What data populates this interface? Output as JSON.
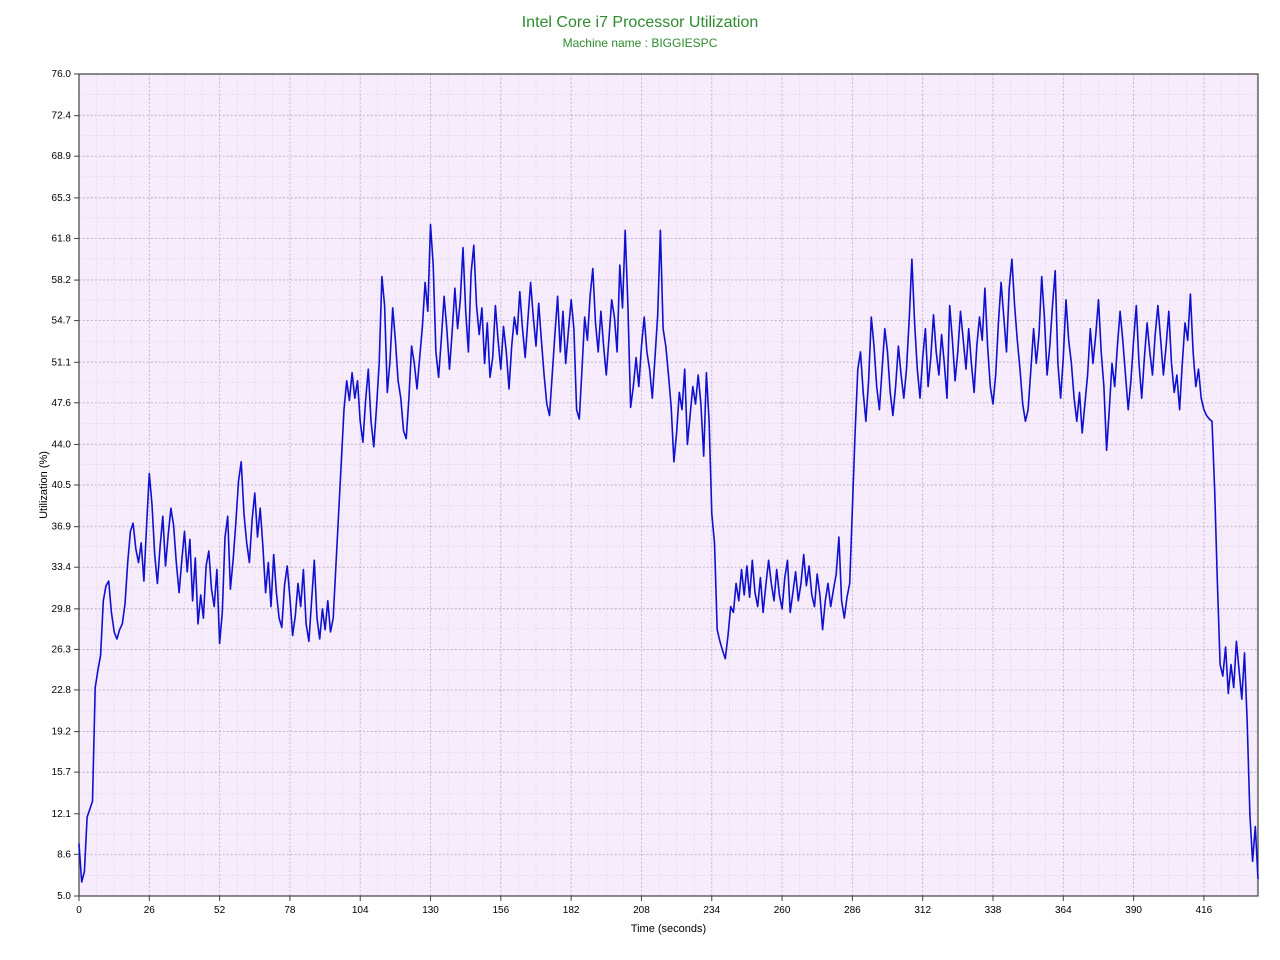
{
  "chart": {
    "type": "line",
    "title": "Intel Core i7 Processor Utilization",
    "subtitle": "Machine name : BIGGIESPC",
    "title_color": "#2e8b2e",
    "subtitle_color": "#2e8b2e",
    "title_fontsize": 16,
    "subtitle_fontsize": 12,
    "xlabel": "Time (seconds)",
    "ylabel": "Utilization (%)",
    "label_fontsize": 11,
    "tick_fontsize": 10,
    "xlim": [
      0,
      436
    ],
    "ylim": [
      5.0,
      76.0
    ],
    "xticks": [
      0,
      26,
      52,
      78,
      104,
      130,
      156,
      182,
      208,
      234,
      260,
      286,
      312,
      338,
      364,
      390,
      416
    ],
    "yticks": [
      5.0,
      8.6,
      12.1,
      15.7,
      19.2,
      22.8,
      26.3,
      29.8,
      33.4,
      36.9,
      40.5,
      44.0,
      47.6,
      51.1,
      54.7,
      58.2,
      61.8,
      65.3,
      68.9,
      72.4,
      76.0
    ],
    "plot_bg": "#f6ecfb",
    "grid_major_color": "#b8a8c8",
    "grid_minor_color": "#d8c8e0",
    "border_color": "#404040",
    "line_color": "#1010d0",
    "line_width": 1.6,
    "x_minor_step": 6.5,
    "y_minor_step": 1.775,
    "data": [
      [
        0,
        9.5
      ],
      [
        1,
        6.2
      ],
      [
        2,
        7.1
      ],
      [
        3,
        11.8
      ],
      [
        4,
        12.5
      ],
      [
        5,
        13.2
      ],
      [
        6,
        23.0
      ],
      [
        7,
        24.5
      ],
      [
        8,
        25.8
      ],
      [
        9,
        30.5
      ],
      [
        10,
        31.8
      ],
      [
        11,
        32.2
      ],
      [
        12,
        29.5
      ],
      [
        13,
        27.8
      ],
      [
        14,
        27.2
      ],
      [
        15,
        28.0
      ],
      [
        16,
        28.5
      ],
      [
        17,
        30.2
      ],
      [
        18,
        33.8
      ],
      [
        19,
        36.5
      ],
      [
        20,
        37.2
      ],
      [
        21,
        35.0
      ],
      [
        22,
        33.8
      ],
      [
        23,
        35.5
      ],
      [
        24,
        32.2
      ],
      [
        25,
        37.0
      ],
      [
        26,
        41.5
      ],
      [
        27,
        38.8
      ],
      [
        28,
        34.5
      ],
      [
        29,
        32.0
      ],
      [
        30,
        35.2
      ],
      [
        31,
        37.8
      ],
      [
        32,
        33.5
      ],
      [
        33,
        36.2
      ],
      [
        34,
        38.5
      ],
      [
        35,
        37.0
      ],
      [
        36,
        33.8
      ],
      [
        37,
        31.2
      ],
      [
        38,
        34.0
      ],
      [
        39,
        36.5
      ],
      [
        40,
        33.0
      ],
      [
        41,
        35.8
      ],
      [
        42,
        30.5
      ],
      [
        43,
        34.2
      ],
      [
        44,
        28.5
      ],
      [
        45,
        31.0
      ],
      [
        46,
        29.0
      ],
      [
        47,
        33.5
      ],
      [
        48,
        34.8
      ],
      [
        49,
        31.5
      ],
      [
        50,
        30.0
      ],
      [
        51,
        33.2
      ],
      [
        52,
        26.8
      ],
      [
        53,
        29.5
      ],
      [
        54,
        36.0
      ],
      [
        55,
        37.8
      ],
      [
        56,
        31.5
      ],
      [
        57,
        34.0
      ],
      [
        58,
        37.2
      ],
      [
        59,
        40.8
      ],
      [
        60,
        42.5
      ],
      [
        61,
        38.0
      ],
      [
        62,
        35.5
      ],
      [
        63,
        33.8
      ],
      [
        64,
        37.5
      ],
      [
        65,
        39.8
      ],
      [
        66,
        36.0
      ],
      [
        67,
        38.5
      ],
      [
        68,
        35.2
      ],
      [
        69,
        31.2
      ],
      [
        70,
        33.8
      ],
      [
        71,
        30.0
      ],
      [
        72,
        34.5
      ],
      [
        73,
        31.2
      ],
      [
        74,
        29.0
      ],
      [
        75,
        28.2
      ],
      [
        76,
        31.8
      ],
      [
        77,
        33.5
      ],
      [
        78,
        30.8
      ],
      [
        79,
        27.5
      ],
      [
        80,
        29.2
      ],
      [
        81,
        32.0
      ],
      [
        82,
        30.0
      ],
      [
        83,
        33.2
      ],
      [
        84,
        28.5
      ],
      [
        85,
        27.0
      ],
      [
        86,
        30.5
      ],
      [
        87,
        34.0
      ],
      [
        88,
        29.0
      ],
      [
        89,
        27.2
      ],
      [
        90,
        29.8
      ],
      [
        91,
        28.0
      ],
      [
        92,
        30.5
      ],
      [
        93,
        27.8
      ],
      [
        94,
        29.0
      ],
      [
        95,
        33.5
      ],
      [
        96,
        38.0
      ],
      [
        97,
        42.5
      ],
      [
        98,
        47.0
      ],
      [
        99,
        49.5
      ],
      [
        100,
        47.8
      ],
      [
        101,
        50.2
      ],
      [
        102,
        48.0
      ],
      [
        103,
        49.5
      ],
      [
        104,
        46.0
      ],
      [
        105,
        44.2
      ],
      [
        106,
        47.8
      ],
      [
        107,
        50.5
      ],
      [
        108,
        46.0
      ],
      [
        109,
        43.8
      ],
      [
        110,
        47.2
      ],
      [
        111,
        51.0
      ],
      [
        112,
        58.5
      ],
      [
        113,
        56.0
      ],
      [
        114,
        48.5
      ],
      [
        115,
        51.2
      ],
      [
        116,
        55.8
      ],
      [
        117,
        53.0
      ],
      [
        118,
        49.5
      ],
      [
        119,
        48.0
      ],
      [
        120,
        45.2
      ],
      [
        121,
        44.5
      ],
      [
        122,
        48.0
      ],
      [
        123,
        52.5
      ],
      [
        124,
        51.0
      ],
      [
        125,
        48.8
      ],
      [
        126,
        51.5
      ],
      [
        127,
        54.2
      ],
      [
        128,
        58.0
      ],
      [
        129,
        55.5
      ],
      [
        130,
        63.0
      ],
      [
        131,
        59.5
      ],
      [
        132,
        52.0
      ],
      [
        133,
        49.8
      ],
      [
        134,
        53.2
      ],
      [
        135,
        56.8
      ],
      [
        136,
        54.0
      ],
      [
        137,
        50.5
      ],
      [
        138,
        53.8
      ],
      [
        139,
        57.5
      ],
      [
        140,
        54.0
      ],
      [
        141,
        56.5
      ],
      [
        142,
        61.0
      ],
      [
        143,
        55.5
      ],
      [
        144,
        52.0
      ],
      [
        145,
        58.8
      ],
      [
        146,
        61.2
      ],
      [
        147,
        56.0
      ],
      [
        148,
        53.5
      ],
      [
        149,
        55.8
      ],
      [
        150,
        51.0
      ],
      [
        151,
        54.5
      ],
      [
        152,
        49.8
      ],
      [
        153,
        51.5
      ],
      [
        154,
        56.0
      ],
      [
        155,
        53.0
      ],
      [
        156,
        50.5
      ],
      [
        157,
        54.2
      ],
      [
        158,
        52.0
      ],
      [
        159,
        48.8
      ],
      [
        160,
        52.5
      ],
      [
        161,
        55.0
      ],
      [
        162,
        53.5
      ],
      [
        163,
        57.2
      ],
      [
        164,
        54.0
      ],
      [
        165,
        51.5
      ],
      [
        166,
        54.8
      ],
      [
        167,
        58.0
      ],
      [
        168,
        55.0
      ],
      [
        169,
        52.5
      ],
      [
        170,
        56.2
      ],
      [
        171,
        53.0
      ],
      [
        172,
        50.0
      ],
      [
        173,
        47.5
      ],
      [
        174,
        46.5
      ],
      [
        175,
        50.0
      ],
      [
        176,
        53.5
      ],
      [
        177,
        56.8
      ],
      [
        178,
        52.0
      ],
      [
        179,
        55.5
      ],
      [
        180,
        51.0
      ],
      [
        181,
        53.8
      ],
      [
        182,
        56.5
      ],
      [
        183,
        54.0
      ],
      [
        184,
        47.0
      ],
      [
        185,
        46.2
      ],
      [
        186,
        50.5
      ],
      [
        187,
        55.0
      ],
      [
        188,
        53.0
      ],
      [
        189,
        56.8
      ],
      [
        190,
        59.2
      ],
      [
        191,
        54.5
      ],
      [
        192,
        52.0
      ],
      [
        193,
        55.5
      ],
      [
        194,
        52.5
      ],
      [
        195,
        50.0
      ],
      [
        196,
        53.2
      ],
      [
        197,
        56.5
      ],
      [
        198,
        55.0
      ],
      [
        199,
        52.0
      ],
      [
        200,
        59.5
      ],
      [
        201,
        55.8
      ],
      [
        202,
        62.5
      ],
      [
        203,
        56.0
      ],
      [
        204,
        47.2
      ],
      [
        205,
        49.0
      ],
      [
        206,
        51.5
      ],
      [
        207,
        49.0
      ],
      [
        208,
        52.5
      ],
      [
        209,
        55.0
      ],
      [
        210,
        52.0
      ],
      [
        211,
        50.5
      ],
      [
        212,
        48.0
      ],
      [
        213,
        51.5
      ],
      [
        214,
        55.2
      ],
      [
        215,
        62.5
      ],
      [
        216,
        54.0
      ],
      [
        217,
        52.5
      ],
      [
        218,
        50.0
      ],
      [
        219,
        47.2
      ],
      [
        220,
        42.5
      ],
      [
        221,
        45.0
      ],
      [
        222,
        48.5
      ],
      [
        223,
        47.0
      ],
      [
        224,
        50.5
      ],
      [
        225,
        44.0
      ],
      [
        226,
        46.5
      ],
      [
        227,
        49.0
      ],
      [
        228,
        47.5
      ],
      [
        229,
        50.0
      ],
      [
        230,
        47.5
      ],
      [
        231,
        43.0
      ],
      [
        232,
        50.2
      ],
      [
        233,
        46.0
      ],
      [
        234,
        38.0
      ],
      [
        235,
        35.5
      ],
      [
        236,
        28.0
      ],
      [
        237,
        27.0
      ],
      [
        238,
        26.2
      ],
      [
        239,
        25.5
      ],
      [
        240,
        27.5
      ],
      [
        241,
        30.0
      ],
      [
        242,
        29.5
      ],
      [
        243,
        32.0
      ],
      [
        244,
        30.5
      ],
      [
        245,
        33.2
      ],
      [
        246,
        31.0
      ],
      [
        247,
        33.5
      ],
      [
        248,
        30.8
      ],
      [
        249,
        34.0
      ],
      [
        250,
        31.2
      ],
      [
        251,
        30.0
      ],
      [
        252,
        32.5
      ],
      [
        253,
        29.5
      ],
      [
        254,
        31.8
      ],
      [
        255,
        34.0
      ],
      [
        256,
        32.0
      ],
      [
        257,
        30.5
      ],
      [
        258,
        33.2
      ],
      [
        259,
        31.0
      ],
      [
        260,
        29.8
      ],
      [
        261,
        32.5
      ],
      [
        262,
        34.0
      ],
      [
        263,
        29.5
      ],
      [
        264,
        31.2
      ],
      [
        265,
        33.0
      ],
      [
        266,
        30.5
      ],
      [
        267,
        32.0
      ],
      [
        268,
        34.5
      ],
      [
        269,
        31.8
      ],
      [
        270,
        33.5
      ],
      [
        271,
        31.0
      ],
      [
        272,
        30.0
      ],
      [
        273,
        32.8
      ],
      [
        274,
        31.0
      ],
      [
        275,
        28.0
      ],
      [
        276,
        30.5
      ],
      [
        277,
        32.0
      ],
      [
        278,
        30.0
      ],
      [
        279,
        31.5
      ],
      [
        280,
        32.8
      ],
      [
        281,
        36.0
      ],
      [
        282,
        30.5
      ],
      [
        283,
        29.0
      ],
      [
        284,
        30.8
      ],
      [
        285,
        32.0
      ],
      [
        286,
        38.5
      ],
      [
        287,
        45.0
      ],
      [
        288,
        50.5
      ],
      [
        289,
        52.0
      ],
      [
        290,
        48.5
      ],
      [
        291,
        46.0
      ],
      [
        292,
        49.5
      ],
      [
        293,
        55.0
      ],
      [
        294,
        52.5
      ],
      [
        295,
        49.0
      ],
      [
        296,
        47.0
      ],
      [
        297,
        50.5
      ],
      [
        298,
        54.0
      ],
      [
        299,
        52.0
      ],
      [
        300,
        48.5
      ],
      [
        301,
        46.5
      ],
      [
        302,
        49.0
      ],
      [
        303,
        52.5
      ],
      [
        304,
        50.0
      ],
      [
        305,
        48.0
      ],
      [
        306,
        50.5
      ],
      [
        307,
        54.8
      ],
      [
        308,
        60.0
      ],
      [
        309,
        54.5
      ],
      [
        310,
        50.5
      ],
      [
        311,
        48.0
      ],
      [
        312,
        51.5
      ],
      [
        313,
        54.0
      ],
      [
        314,
        49.0
      ],
      [
        315,
        51.5
      ],
      [
        316,
        55.2
      ],
      [
        317,
        52.0
      ],
      [
        318,
        50.0
      ],
      [
        319,
        53.5
      ],
      [
        320,
        51.0
      ],
      [
        321,
        48.0
      ],
      [
        322,
        56.0
      ],
      [
        323,
        53.0
      ],
      [
        324,
        49.5
      ],
      [
        325,
        52.0
      ],
      [
        326,
        55.5
      ],
      [
        327,
        53.0
      ],
      [
        328,
        50.5
      ],
      [
        329,
        54.0
      ],
      [
        330,
        51.0
      ],
      [
        331,
        48.5
      ],
      [
        332,
        52.5
      ],
      [
        333,
        55.0
      ],
      [
        334,
        53.0
      ],
      [
        335,
        57.5
      ],
      [
        336,
        52.5
      ],
      [
        337,
        49.0
      ],
      [
        338,
        47.5
      ],
      [
        339,
        50.0
      ],
      [
        340,
        54.5
      ],
      [
        341,
        58.0
      ],
      [
        342,
        55.0
      ],
      [
        343,
        52.0
      ],
      [
        344,
        57.5
      ],
      [
        345,
        60.0
      ],
      [
        346,
        56.0
      ],
      [
        347,
        53.0
      ],
      [
        348,
        50.5
      ],
      [
        349,
        47.5
      ],
      [
        350,
        46.0
      ],
      [
        351,
        47.0
      ],
      [
        352,
        50.5
      ],
      [
        353,
        54.0
      ],
      [
        354,
        51.0
      ],
      [
        355,
        53.5
      ],
      [
        356,
        58.5
      ],
      [
        357,
        55.0
      ],
      [
        358,
        50.0
      ],
      [
        359,
        52.5
      ],
      [
        360,
        56.0
      ],
      [
        361,
        59.0
      ],
      [
        362,
        51.0
      ],
      [
        363,
        48.0
      ],
      [
        364,
        51.5
      ],
      [
        365,
        56.5
      ],
      [
        366,
        53.0
      ],
      [
        367,
        51.0
      ],
      [
        368,
        48.0
      ],
      [
        369,
        46.0
      ],
      [
        370,
        48.5
      ],
      [
        371,
        45.0
      ],
      [
        372,
        47.5
      ],
      [
        373,
        50.0
      ],
      [
        374,
        54.0
      ],
      [
        375,
        51.0
      ],
      [
        376,
        53.5
      ],
      [
        377,
        56.5
      ],
      [
        378,
        52.0
      ],
      [
        379,
        49.0
      ],
      [
        380,
        43.5
      ],
      [
        381,
        47.0
      ],
      [
        382,
        51.0
      ],
      [
        383,
        49.0
      ],
      [
        384,
        52.5
      ],
      [
        385,
        55.5
      ],
      [
        386,
        53.0
      ],
      [
        387,
        50.0
      ],
      [
        388,
        47.0
      ],
      [
        389,
        49.5
      ],
      [
        390,
        53.0
      ],
      [
        391,
        56.0
      ],
      [
        392,
        51.0
      ],
      [
        393,
        48.0
      ],
      [
        394,
        51.5
      ],
      [
        395,
        54.5
      ],
      [
        396,
        52.0
      ],
      [
        397,
        50.0
      ],
      [
        398,
        53.5
      ],
      [
        399,
        56.0
      ],
      [
        400,
        53.0
      ],
      [
        401,
        50.0
      ],
      [
        402,
        52.5
      ],
      [
        403,
        55.5
      ],
      [
        404,
        51.0
      ],
      [
        405,
        48.5
      ],
      [
        406,
        50.0
      ],
      [
        407,
        47.0
      ],
      [
        408,
        51.0
      ],
      [
        409,
        54.5
      ],
      [
        410,
        53.0
      ],
      [
        411,
        57.0
      ],
      [
        412,
        52.0
      ],
      [
        413,
        49.0
      ],
      [
        414,
        50.5
      ],
      [
        415,
        48.0
      ],
      [
        416,
        47.0
      ],
      [
        417,
        46.5
      ],
      [
        418,
        46.2
      ],
      [
        419,
        46.0
      ],
      [
        420,
        40.0
      ],
      [
        421,
        32.0
      ],
      [
        422,
        25.0
      ],
      [
        423,
        24.0
      ],
      [
        424,
        26.5
      ],
      [
        425,
        22.5
      ],
      [
        426,
        25.0
      ],
      [
        427,
        23.0
      ],
      [
        428,
        27.0
      ],
      [
        429,
        24.5
      ],
      [
        430,
        22.0
      ],
      [
        431,
        26.0
      ],
      [
        432,
        20.0
      ],
      [
        433,
        12.0
      ],
      [
        434,
        8.0
      ],
      [
        435,
        11.0
      ],
      [
        436,
        6.5
      ]
    ]
  }
}
